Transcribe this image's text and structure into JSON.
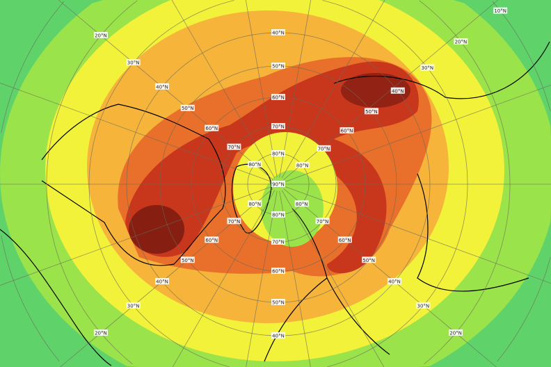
{
  "map": {
    "projection": "north-polar-stereographic",
    "latitude_labels": [
      "10°N",
      "20°N",
      "30°N",
      "40°N",
      "50°N",
      "60°N",
      "70°N",
      "80°N",
      "90°N"
    ],
    "colors": {
      "low": "#5fd36a",
      "low_mid": "#9be34a",
      "mid": "#f2f23a",
      "mid_high": "#f6b43a",
      "high": "#e8702a",
      "very_high": "#c8361c",
      "extreme": "#7a1a10",
      "gridline": "#6a6a5a",
      "coastline": "#000000"
    }
  }
}
